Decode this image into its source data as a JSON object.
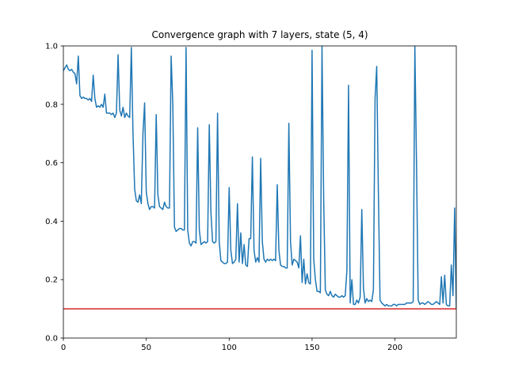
{
  "chart_data": {
    "type": "line",
    "title": "Convergence graph with 7 layers, state (5, 4)",
    "xlabel": "",
    "ylabel": "",
    "xlim": [
      0,
      237
    ],
    "ylim": [
      0.0,
      1.0
    ],
    "xticks": [
      0,
      50,
      100,
      150,
      200
    ],
    "yticks": [
      0.0,
      0.2,
      0.4,
      0.6,
      0.8,
      1.0
    ],
    "x_tick_labels": [
      "0",
      "50",
      "100",
      "150",
      "200"
    ],
    "y_tick_labels": [
      "0.0",
      "0.2",
      "0.4",
      "0.6",
      "0.8",
      "1.0"
    ],
    "grid": false,
    "series": [
      {
        "color": "#1f77b4",
        "points": [
          [
            0,
            0.915
          ],
          [
            1,
            0.925
          ],
          [
            2,
            0.935
          ],
          [
            3,
            0.92
          ],
          [
            4,
            0.915
          ],
          [
            5,
            0.92
          ],
          [
            6,
            0.91
          ],
          [
            7,
            0.905
          ],
          [
            8,
            0.87
          ],
          [
            9,
            0.965
          ],
          [
            10,
            0.83
          ],
          [
            11,
            0.82
          ],
          [
            12,
            0.825
          ],
          [
            13,
            0.82
          ],
          [
            14,
            0.82
          ],
          [
            15,
            0.815
          ],
          [
            16,
            0.82
          ],
          [
            17,
            0.81
          ],
          [
            18,
            0.9
          ],
          [
            19,
            0.82
          ],
          [
            20,
            0.79
          ],
          [
            21,
            0.795
          ],
          [
            22,
            0.79
          ],
          [
            23,
            0.8
          ],
          [
            24,
            0.79
          ],
          [
            25,
            0.835
          ],
          [
            26,
            0.77
          ],
          [
            27,
            0.77
          ],
          [
            28,
            0.77
          ],
          [
            29,
            0.765
          ],
          [
            30,
            0.77
          ],
          [
            31,
            0.755
          ],
          [
            32,
            0.77
          ],
          [
            33,
            0.97
          ],
          [
            34,
            0.78
          ],
          [
            35,
            0.76
          ],
          [
            36,
            0.79
          ],
          [
            37,
            0.755
          ],
          [
            38,
            0.77
          ],
          [
            39,
            0.76
          ],
          [
            40,
            0.755
          ],
          [
            41,
            0.995
          ],
          [
            42,
            0.7
          ],
          [
            43,
            0.51
          ],
          [
            44,
            0.47
          ],
          [
            45,
            0.465
          ],
          [
            46,
            0.49
          ],
          [
            47,
            0.46
          ],
          [
            48,
            0.7
          ],
          [
            49,
            0.805
          ],
          [
            50,
            0.5
          ],
          [
            51,
            0.46
          ],
          [
            52,
            0.44
          ],
          [
            53,
            0.45
          ],
          [
            54,
            0.45
          ],
          [
            55,
            0.445
          ],
          [
            56,
            0.765
          ],
          [
            57,
            0.49
          ],
          [
            58,
            0.45
          ],
          [
            59,
            0.445
          ],
          [
            60,
            0.44
          ],
          [
            61,
            0.465
          ],
          [
            62,
            0.45
          ],
          [
            63,
            0.445
          ],
          [
            64,
            0.445
          ],
          [
            65,
            0.965
          ],
          [
            66,
            0.8
          ],
          [
            67,
            0.38
          ],
          [
            68,
            0.365
          ],
          [
            69,
            0.37
          ],
          [
            70,
            0.375
          ],
          [
            71,
            0.375
          ],
          [
            72,
            0.37
          ],
          [
            73,
            0.37
          ],
          [
            74,
            0.995
          ],
          [
            75,
            0.37
          ],
          [
            76,
            0.325
          ],
          [
            77,
            0.315
          ],
          [
            78,
            0.33
          ],
          [
            79,
            0.33
          ],
          [
            80,
            0.325
          ],
          [
            81,
            0.72
          ],
          [
            82,
            0.37
          ],
          [
            83,
            0.32
          ],
          [
            84,
            0.325
          ],
          [
            85,
            0.33
          ],
          [
            86,
            0.325
          ],
          [
            87,
            0.33
          ],
          [
            88,
            0.73
          ],
          [
            89,
            0.43
          ],
          [
            90,
            0.33
          ],
          [
            91,
            0.325
          ],
          [
            92,
            0.33
          ],
          [
            93,
            0.77
          ],
          [
            94,
            0.33
          ],
          [
            95,
            0.265
          ],
          [
            96,
            0.26
          ],
          [
            97,
            0.255
          ],
          [
            98,
            0.255
          ],
          [
            99,
            0.26
          ],
          [
            100,
            0.515
          ],
          [
            101,
            0.3
          ],
          [
            102,
            0.255
          ],
          [
            103,
            0.26
          ],
          [
            104,
            0.27
          ],
          [
            105,
            0.46
          ],
          [
            106,
            0.26
          ],
          [
            107,
            0.36
          ],
          [
            108,
            0.255
          ],
          [
            109,
            0.32
          ],
          [
            110,
            0.25
          ],
          [
            111,
            0.245
          ],
          [
            112,
            0.34
          ],
          [
            113,
            0.34
          ],
          [
            114,
            0.62
          ],
          [
            115,
            0.3
          ],
          [
            116,
            0.26
          ],
          [
            117,
            0.275
          ],
          [
            118,
            0.26
          ],
          [
            119,
            0.615
          ],
          [
            120,
            0.33
          ],
          [
            121,
            0.27
          ],
          [
            122,
            0.26
          ],
          [
            123,
            0.27
          ],
          [
            124,
            0.265
          ],
          [
            125,
            0.27
          ],
          [
            126,
            0.265
          ],
          [
            127,
            0.27
          ],
          [
            128,
            0.265
          ],
          [
            129,
            0.525
          ],
          [
            130,
            0.3
          ],
          [
            131,
            0.25
          ],
          [
            132,
            0.245
          ],
          [
            133,
            0.245
          ],
          [
            134,
            0.24
          ],
          [
            135,
            0.24
          ],
          [
            136,
            0.735
          ],
          [
            137,
            0.33
          ],
          [
            138,
            0.25
          ],
          [
            139,
            0.27
          ],
          [
            140,
            0.265
          ],
          [
            141,
            0.26
          ],
          [
            142,
            0.24
          ],
          [
            143,
            0.35
          ],
          [
            144,
            0.19
          ],
          [
            145,
            0.27
          ],
          [
            146,
            0.185
          ],
          [
            147,
            0.22
          ],
          [
            148,
            0.19
          ],
          [
            149,
            0.185
          ],
          [
            150,
            0.985
          ],
          [
            151,
            0.27
          ],
          [
            152,
            0.2
          ],
          [
            153,
            0.16
          ],
          [
            154,
            0.16
          ],
          [
            155,
            0.155
          ],
          [
            156,
            1.0
          ],
          [
            157,
            0.48
          ],
          [
            158,
            0.165
          ],
          [
            159,
            0.15
          ],
          [
            160,
            0.145
          ],
          [
            161,
            0.16
          ],
          [
            162,
            0.145
          ],
          [
            163,
            0.14
          ],
          [
            164,
            0.15
          ],
          [
            165,
            0.145
          ],
          [
            166,
            0.14
          ],
          [
            167,
            0.14
          ],
          [
            168,
            0.145
          ],
          [
            169,
            0.14
          ],
          [
            170,
            0.145
          ],
          [
            171,
            0.23
          ],
          [
            172,
            0.865
          ],
          [
            173,
            0.12
          ],
          [
            174,
            0.2
          ],
          [
            175,
            0.115
          ],
          [
            176,
            0.115
          ],
          [
            177,
            0.13
          ],
          [
            178,
            0.12
          ],
          [
            179,
            0.14
          ],
          [
            180,
            0.44
          ],
          [
            181,
            0.17
          ],
          [
            182,
            0.12
          ],
          [
            183,
            0.135
          ],
          [
            184,
            0.125
          ],
          [
            185,
            0.13
          ],
          [
            186,
            0.125
          ],
          [
            187,
            0.165
          ],
          [
            188,
            0.82
          ],
          [
            189,
            0.93
          ],
          [
            190,
            0.5
          ],
          [
            191,
            0.13
          ],
          [
            192,
            0.12
          ],
          [
            193,
            0.115
          ],
          [
            194,
            0.11
          ],
          [
            195,
            0.115
          ],
          [
            196,
            0.11
          ],
          [
            197,
            0.11
          ],
          [
            198,
            0.11
          ],
          [
            199,
            0.115
          ],
          [
            200,
            0.115
          ],
          [
            201,
            0.11
          ],
          [
            202,
            0.115
          ],
          [
            203,
            0.115
          ],
          [
            204,
            0.115
          ],
          [
            205,
            0.115
          ],
          [
            206,
            0.115
          ],
          [
            207,
            0.12
          ],
          [
            208,
            0.12
          ],
          [
            209,
            0.12
          ],
          [
            210,
            0.12
          ],
          [
            211,
            0.125
          ],
          [
            212,
            1.0
          ],
          [
            213,
            0.6
          ],
          [
            214,
            0.13
          ],
          [
            215,
            0.115
          ],
          [
            216,
            0.12
          ],
          [
            217,
            0.12
          ],
          [
            218,
            0.115
          ],
          [
            219,
            0.12
          ],
          [
            220,
            0.125
          ],
          [
            221,
            0.12
          ],
          [
            222,
            0.115
          ],
          [
            223,
            0.115
          ],
          [
            224,
            0.12
          ],
          [
            225,
            0.125
          ],
          [
            226,
            0.12
          ],
          [
            227,
            0.115
          ],
          [
            228,
            0.21
          ],
          [
            229,
            0.12
          ],
          [
            230,
            0.215
          ],
          [
            231,
            0.115
          ],
          [
            232,
            0.11
          ],
          [
            233,
            0.11
          ],
          [
            234,
            0.25
          ],
          [
            235,
            0.145
          ],
          [
            236,
            0.445
          ],
          [
            237,
            0.1
          ]
        ]
      }
    ],
    "reference_line": {
      "y": 0.1,
      "color": "#d62728"
    }
  }
}
